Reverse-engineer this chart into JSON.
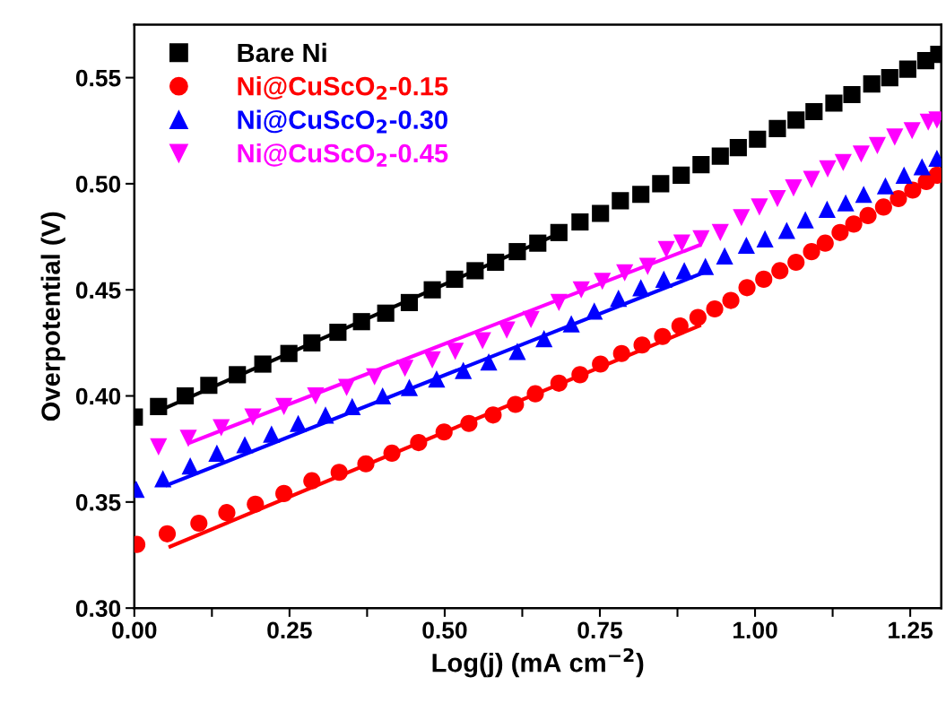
{
  "chart_data": {
    "type": "scatter",
    "xlabel": "Log(j) (mA cm$^{−2}$)",
    "ylabel": "Overpotential (V)",
    "xlim": [
      0,
      1.3
    ],
    "ylim": [
      0.3,
      0.575
    ],
    "xticks": [
      {
        "value": 0,
        "label": "0.00"
      },
      {
        "value": 0.125,
        "label": null
      },
      {
        "value": 0.25,
        "label": "0.25"
      },
      {
        "value": 0.375,
        "label": null
      },
      {
        "value": 0.5,
        "label": "0.50"
      },
      {
        "value": 0.625,
        "label": null
      },
      {
        "value": 0.75,
        "label": "0.75"
      },
      {
        "value": 0.875,
        "label": null
      },
      {
        "value": 1.0,
        "label": "1.00"
      },
      {
        "value": 1.125,
        "label": null
      },
      {
        "value": 1.25,
        "label": "1.25"
      }
    ],
    "yticks": [
      {
        "value": 0.3,
        "label": "0.30"
      },
      0.35,
      {
        "value": 0.4,
        "label": "0.40"
      },
      0.45,
      {
        "value": 0.5,
        "label": "0.50"
      },
      0.55
    ],
    "grid": false,
    "legend": "top left",
    "series": [
      {
        "name": "Bare Ni",
        "color": "#000000",
        "marker": "square",
        "x": [
          0,
          0.039,
          0.082,
          0.12,
          0.166,
          0.207,
          0.249,
          0.286,
          0.328,
          0.366,
          0.405,
          0.443,
          0.48,
          0.516,
          0.549,
          0.582,
          0.617,
          0.65,
          0.684,
          0.718,
          0.751,
          0.783,
          0.816,
          0.848,
          0.881,
          0.913,
          0.944,
          0.973,
          1.004,
          1.036,
          1.066,
          1.095,
          1.127,
          1.156,
          1.188,
          1.217,
          1.246,
          1.275,
          1.296
        ],
        "values": [
          0.39,
          0.395,
          0.4,
          0.405,
          0.41,
          0.415,
          0.42,
          0.425,
          0.43,
          0.435,
          0.439,
          0.444,
          0.45,
          0.455,
          0.459,
          0.463,
          0.468,
          0.472,
          0.477,
          0.482,
          0.486,
          0.492,
          0.495,
          0.5,
          0.504,
          0.509,
          0.513,
          0.517,
          0.521,
          0.526,
          0.53,
          0.534,
          0.538,
          0.542,
          0.547,
          0.55,
          0.554,
          0.558,
          0.561
        ]
      },
      {
        "name": "Ni@CuScO$_{2}$-0.15",
        "color": "#ff0000",
        "marker": "circle",
        "x": [
          0.004,
          0.053,
          0.104,
          0.149,
          0.195,
          0.241,
          0.286,
          0.33,
          0.373,
          0.415,
          0.458,
          0.499,
          0.539,
          0.578,
          0.614,
          0.646,
          0.684,
          0.718,
          0.751,
          0.785,
          0.818,
          0.851,
          0.879,
          0.908,
          0.935,
          0.961,
          0.987,
          1.014,
          1.04,
          1.066,
          1.091,
          1.113,
          1.137,
          1.159,
          1.182,
          1.207,
          1.231,
          1.254,
          1.276,
          1.293
        ],
        "values": [
          0.33,
          0.335,
          0.34,
          0.345,
          0.349,
          0.354,
          0.36,
          0.364,
          0.368,
          0.373,
          0.378,
          0.383,
          0.387,
          0.391,
          0.396,
          0.401,
          0.406,
          0.41,
          0.415,
          0.42,
          0.424,
          0.428,
          0.433,
          0.437,
          0.441,
          0.445,
          0.451,
          0.455,
          0.459,
          0.463,
          0.468,
          0.472,
          0.477,
          0.481,
          0.485,
          0.489,
          0.493,
          0.497,
          0.501,
          0.504
        ]
      },
      {
        "name": "Ni@CuScO$_{2}$-0.30",
        "color": "#0000ff",
        "marker": "triangle",
        "x": [
          0.003,
          0.046,
          0.09,
          0.133,
          0.178,
          0.221,
          0.264,
          0.308,
          0.351,
          0.4,
          0.443,
          0.487,
          0.53,
          0.571,
          0.617,
          0.66,
          0.704,
          0.741,
          0.78,
          0.816,
          0.853,
          0.886,
          0.92,
          0.951,
          0.986,
          1.016,
          1.051,
          1.081,
          1.116,
          1.146,
          1.175,
          1.21,
          1.24,
          1.269,
          1.293
        ],
        "values": [
          0.356,
          0.361,
          0.367,
          0.373,
          0.377,
          0.382,
          0.387,
          0.391,
          0.395,
          0.4,
          0.404,
          0.408,
          0.412,
          0.416,
          0.421,
          0.427,
          0.434,
          0.44,
          0.446,
          0.451,
          0.455,
          0.459,
          0.461,
          0.466,
          0.471,
          0.474,
          0.478,
          0.483,
          0.488,
          0.491,
          0.495,
          0.499,
          0.504,
          0.508,
          0.512
        ]
      },
      {
        "name": "Ni@CuScO$_{2}$-0.45",
        "color": "#ff00ff",
        "marker": "triangle_down",
        "x": [
          0.039,
          0.087,
          0.14,
          0.191,
          0.241,
          0.292,
          0.342,
          0.387,
          0.436,
          0.48,
          0.517,
          0.561,
          0.6,
          0.639,
          0.684,
          0.72,
          0.754,
          0.79,
          0.827,
          0.857,
          0.882,
          0.913,
          0.944,
          0.978,
          1.007,
          1.036,
          1.062,
          1.091,
          1.117,
          1.142,
          1.171,
          1.197,
          1.225,
          1.253,
          1.279,
          1.293
        ],
        "values": [
          0.376,
          0.38,
          0.385,
          0.39,
          0.395,
          0.4,
          0.404,
          0.409,
          0.413,
          0.417,
          0.421,
          0.426,
          0.431,
          0.436,
          0.444,
          0.45,
          0.454,
          0.458,
          0.461,
          0.469,
          0.472,
          0.474,
          0.477,
          0.484,
          0.489,
          0.493,
          0.498,
          0.502,
          0.507,
          0.51,
          0.514,
          0.518,
          0.522,
          0.525,
          0.529,
          0.53
        ]
      },
      {
        "type": "line",
        "color": "#000000",
        "x": [
          0.04,
          0.68
        ],
        "values": [
          0.393,
          0.476
        ]
      },
      {
        "type": "line",
        "color": "#ff0000",
        "x": [
          0.058,
          0.91
        ],
        "values": [
          0.329,
          0.433
        ]
      },
      {
        "type": "line",
        "color": "#0000ff",
        "x": [
          0.053,
          0.925
        ],
        "values": [
          0.358,
          0.459
        ]
      },
      {
        "type": "line",
        "color": "#ff00ff",
        "x": [
          0.09,
          0.91
        ],
        "values": [
          0.378,
          0.471
        ]
      }
    ]
  }
}
